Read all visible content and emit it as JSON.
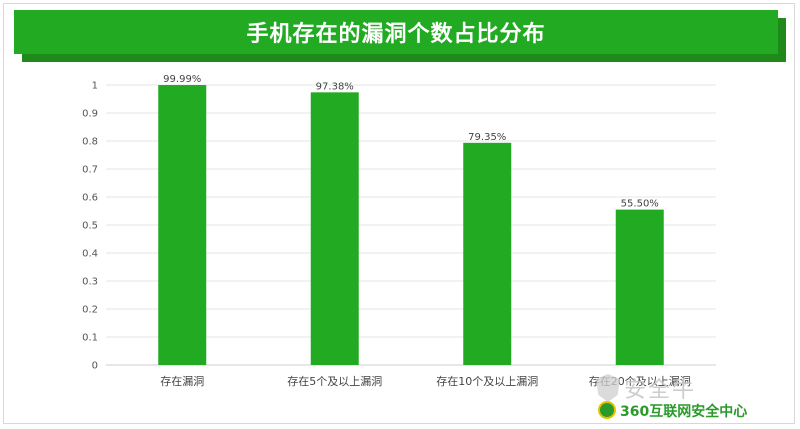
{
  "title": "手机存在的漏洞个数占比分布",
  "chart_data": {
    "type": "bar",
    "title": "手机存在的漏洞个数占比分布",
    "categories": [
      "存在漏洞",
      "存在5个及以上漏洞",
      "存在10个及以上漏洞",
      "存在20个及以上漏洞"
    ],
    "values": [
      0.9999,
      0.9738,
      0.7935,
      0.555
    ],
    "data_labels": [
      "99.99%",
      "97.38%",
      "79.35%",
      "55.50%"
    ],
    "yticks": [
      "0",
      "0.1",
      "0.2",
      "0.3",
      "0.4",
      "0.5",
      "0.6",
      "0.7",
      "0.8",
      "0.9",
      "1"
    ],
    "ylim": [
      0,
      1
    ],
    "grid": true,
    "bar_color": "#22aa22",
    "xlabel": "",
    "ylabel": ""
  },
  "watermark": {
    "big_text": "安全牛",
    "line_text": "360互联网安全中心"
  },
  "colors": {
    "title_bg": "#22aa22",
    "title_shadow": "#1f8a1a",
    "grid": "#e6e6e6"
  }
}
